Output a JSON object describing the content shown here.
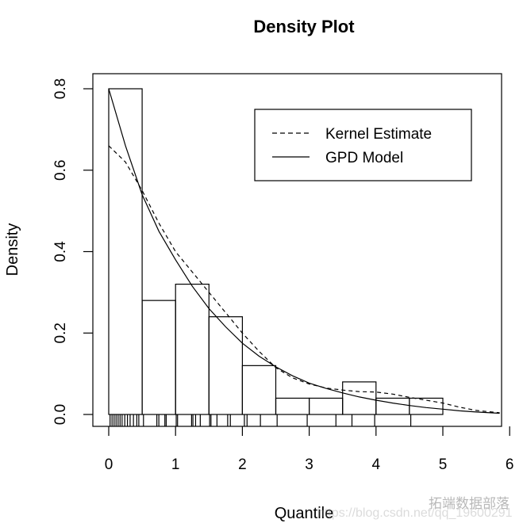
{
  "chart_data": {
    "type": "histogram",
    "title": "Density Plot",
    "xlabel": "Quantile",
    "ylabel": "Density",
    "xlim": [
      0,
      6
    ],
    "ylim": [
      0,
      0.8
    ],
    "xticks": [
      "0",
      "1",
      "2",
      "3",
      "4",
      "5",
      "6"
    ],
    "yticks": [
      "0.0",
      "0.2",
      "0.4",
      "0.6",
      "0.8"
    ],
    "grid": false,
    "legend_position": "top-right",
    "histogram": {
      "bin_edges": [
        0,
        0.5,
        1,
        1.5,
        2,
        2.5,
        3,
        3.5,
        4,
        4.5,
        5
      ],
      "density": [
        0.8,
        0.28,
        0.32,
        0.24,
        0.12,
        0.04,
        0.04,
        0.08,
        0.04,
        0.04
      ]
    },
    "rug": [
      0.02,
      0.05,
      0.08,
      0.11,
      0.14,
      0.17,
      0.2,
      0.24,
      0.28,
      0.32,
      0.37,
      0.42,
      0.45,
      0.52,
      0.72,
      0.75,
      0.84,
      0.86,
      1.01,
      1.03,
      1.24,
      1.26,
      1.3,
      1.37,
      1.51,
      1.53,
      1.62,
      1.78,
      1.82,
      2.03,
      2.07,
      2.27,
      2.52,
      2.97,
      3.4,
      3.64,
      3.98,
      4.52
    ],
    "series": [
      {
        "name": "Kernel Estimate",
        "line": "dashed",
        "x": [
          0,
          0.25,
          0.5,
          0.75,
          1,
          1.25,
          1.5,
          1.75,
          2,
          2.25,
          2.5,
          2.75,
          3,
          3.25,
          3.5,
          3.75,
          4,
          4.25,
          4.5,
          4.75,
          5,
          5.25,
          5.5,
          5.85
        ],
        "y": [
          0.66,
          0.62,
          0.55,
          0.47,
          0.4,
          0.35,
          0.3,
          0.25,
          0.2,
          0.155,
          0.115,
          0.09,
          0.075,
          0.065,
          0.06,
          0.056,
          0.055,
          0.05,
          0.042,
          0.035,
          0.028,
          0.018,
          0.01,
          0.004
        ]
      },
      {
        "name": "GPD Model",
        "line": "solid",
        "x": [
          0,
          0.25,
          0.5,
          0.75,
          1,
          1.25,
          1.5,
          1.75,
          2,
          2.25,
          2.5,
          2.75,
          3,
          3.25,
          3.5,
          3.75,
          4,
          4.25,
          4.5,
          4.75,
          5,
          5.25,
          5.5,
          5.85
        ],
        "y": [
          0.8,
          0.66,
          0.54,
          0.45,
          0.38,
          0.315,
          0.26,
          0.215,
          0.175,
          0.143,
          0.117,
          0.095,
          0.077,
          0.064,
          0.053,
          0.043,
          0.035,
          0.028,
          0.022,
          0.017,
          0.013,
          0.009,
          0.006,
          0.003
        ]
      }
    ]
  },
  "watermark": {
    "logo_text": "拓端数据部落",
    "url": "https://blog.csdn.net/qq_19600291"
  }
}
